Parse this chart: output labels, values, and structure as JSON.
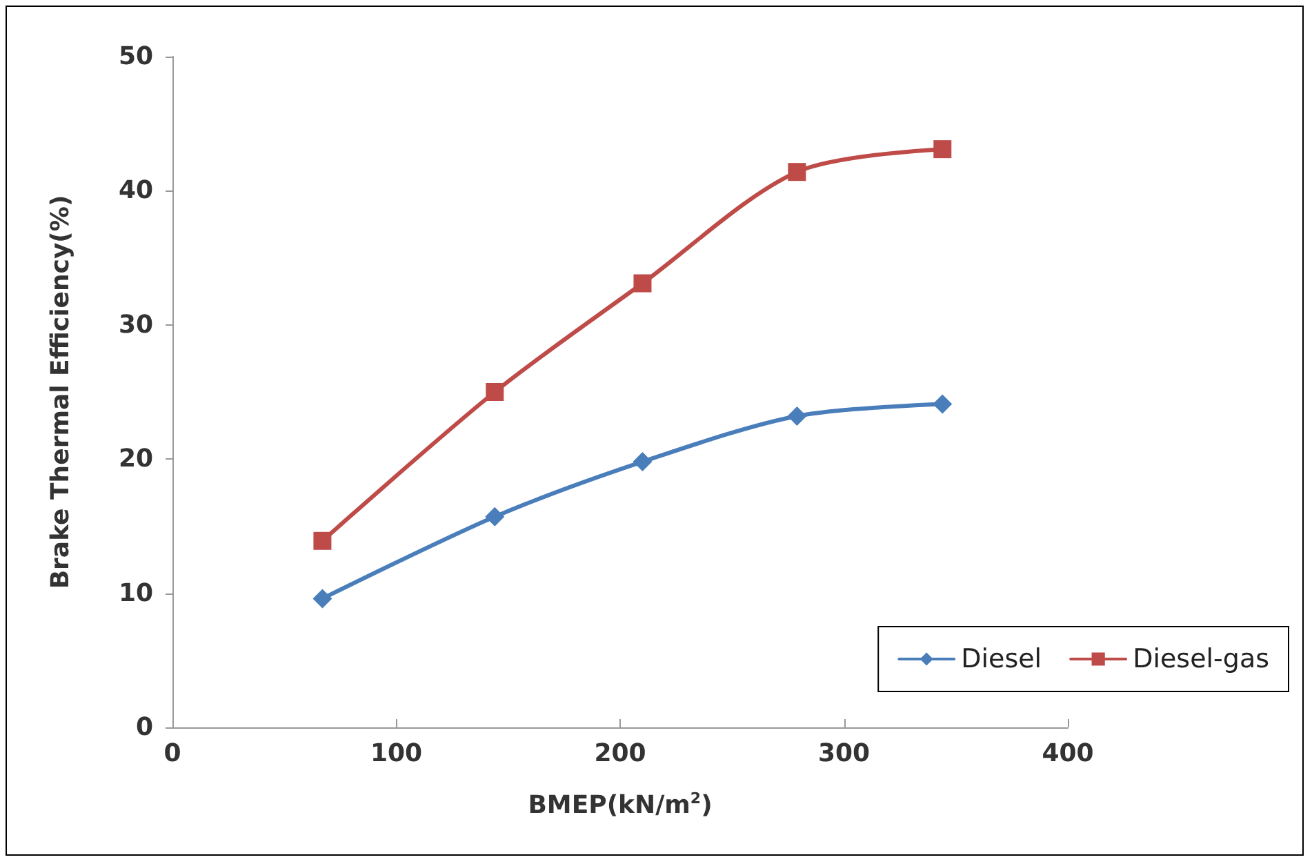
{
  "chart_data": {
    "type": "line",
    "xlabel": "BMEP(kN/m$^{2}$)",
    "ylabel": "Brake Thermal Efficiency(%)",
    "xlim": [
      0,
      400
    ],
    "xticks": [
      0,
      100,
      200,
      300,
      400
    ],
    "ylim": [
      0,
      50
    ],
    "yticks": [
      0,
      10,
      20,
      30,
      40,
      50
    ],
    "grid": false,
    "legend": "bottom right",
    "line_style": "solid",
    "series": [
      {
        "name": "Diesel",
        "color": "#4a7ebb",
        "marker": "diamond",
        "x": [
          67,
          144,
          210,
          279,
          344
        ],
        "values": [
          9.6,
          15.7,
          19.8,
          23.2,
          24.1
        ]
      },
      {
        "name": "Diesel-gas",
        "color": "#be4b48",
        "marker": "square",
        "x": [
          67,
          144,
          210,
          279,
          344
        ],
        "values": [
          13.9,
          25.0,
          33.1,
          41.4,
          43.1
        ]
      }
    ]
  }
}
